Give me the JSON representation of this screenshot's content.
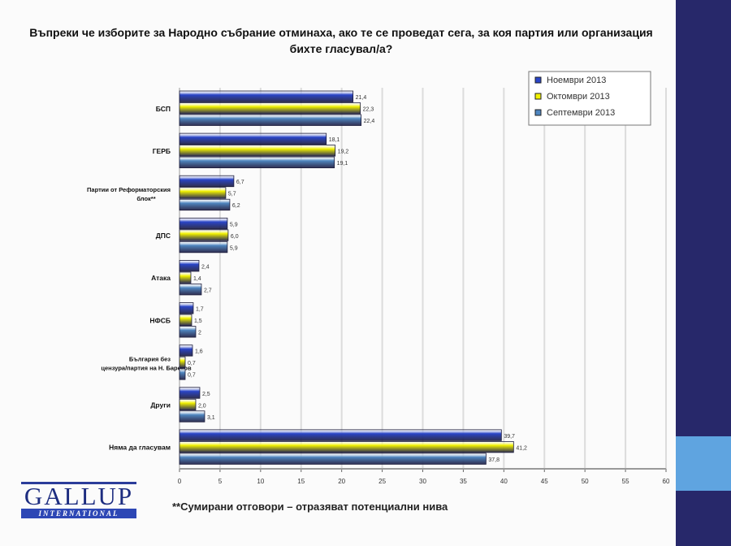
{
  "title": "Въпреки че изборите за Народно събрание отминаха, ако те се проведат сега, за коя партия или организация бихте гласувал/а?",
  "footnote": "**Сумирани отговори – отразяват потенциални нива",
  "logo": {
    "word": "GALLUP",
    "sub": "INTERNATIONAL"
  },
  "colors": {
    "panel": "#27286a",
    "accent": "#5fa4e0"
  },
  "chart_data": {
    "type": "bar",
    "orientation": "horizontal",
    "categories": [
      "БСП",
      "ГЕРБ",
      "Партии от Реформаторския блок**",
      "ДПС",
      "Атака",
      "НФСБ",
      "България без цензура/партия на Н. Бареков",
      "Други",
      "Няма да гласувам"
    ],
    "series": [
      {
        "name": "Ноември 2013",
        "color": "#2a45c8",
        "values": [
          21.4,
          18.1,
          6.7,
          5.9,
          2.4,
          1.7,
          1.6,
          2.5,
          39.7
        ],
        "labels": [
          "21,4",
          "18,1",
          "6,7",
          "5,9",
          "2,4",
          "1,7",
          "1,6",
          "2,5",
          "39,7"
        ]
      },
      {
        "name": "Октомври 2013",
        "color": "#f2f200",
        "values": [
          22.3,
          19.2,
          5.7,
          6.0,
          1.4,
          1.5,
          0.7,
          2.0,
          41.2
        ],
        "labels": [
          "22,3",
          "19,2",
          "5,7",
          "6,0",
          "1,4",
          "1,5",
          "0,7",
          "2,0",
          "41,2"
        ]
      },
      {
        "name": "Септември 2013",
        "color": "#4f86c0",
        "values": [
          22.4,
          19.1,
          6.2,
          5.9,
          2.7,
          2,
          0.7,
          3.1,
          37.8
        ],
        "labels": [
          "22,4",
          "19,1",
          "6,2",
          "5,9",
          "2,7",
          "2",
          "0,7",
          "3,1",
          "37,8"
        ]
      }
    ],
    "xlim": [
      0,
      60
    ],
    "xticks": [
      "0",
      "5",
      "10",
      "15",
      "20",
      "25",
      "30",
      "35",
      "40",
      "45",
      "50",
      "55",
      "60"
    ],
    "grid": true,
    "legend": "top-right"
  }
}
